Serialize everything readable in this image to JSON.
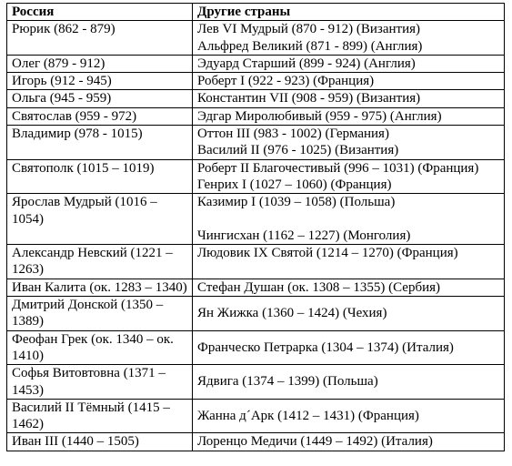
{
  "table": {
    "header": [
      "Россия",
      "Другие страны"
    ],
    "rows": [
      {
        "left": "Рюрик (862 - 879)",
        "right": [
          "Лев VI Мудрый (870 - 912) (Византия)",
          "Альфред Великий (871 - 899) (Англия)"
        ]
      },
      {
        "left": "Олег (879 - 912)",
        "right": [
          "Эдуард Старший (899 - 924) (Англия)"
        ]
      },
      {
        "left": "Игорь (912 - 945)",
        "right": [
          "Роберт I (922 - 923) (Франция)"
        ]
      },
      {
        "left": "Ольга (945 - 959)",
        "right": [
          "Константин VII (908 - 959) (Византия)"
        ]
      },
      {
        "left": "Святослав (959 - 972)",
        "right": [
          "Эдгар Миролюбивый (959 - 975) (Англия)"
        ]
      },
      {
        "left": "Владимир (978 - 1015)",
        "right": [
          "Оттон III (983 - 1002) (Германия)",
          "Василий II (976 - 1025) (Византия)"
        ]
      },
      {
        "left": "Святополк (1015 – 1019)",
        "right": [
          "Роберт II Благочестивый (996 – 1031) (Франция)",
          "Генрих I (1027 – 1060) (Франция)"
        ]
      },
      {
        "left": "Ярослав Мудрый (1016 – 1054)",
        "right": [
          "Казимир I (1039 – 1058) (Польша)",
          "Чингисхан (1162 – 1227) (Монголия)"
        ]
      },
      {
        "left": "Александр Невский (1221 – 1263)",
        "right": [
          "Людовик IX Святой (1214 – 1270) (Франция)"
        ]
      },
      {
        "left": "Иван Калита (ок. 1283 – 1340)",
        "right": [
          "Стефан Душан (ок. 1308 – 1355) (Сербия)"
        ]
      },
      {
        "left": "Дмитрий Донской (1350 – 1389)",
        "right": [
          "Ян Жижка (1360 – 1424) (Чехия)"
        ]
      },
      {
        "left": "Феофан Грек (ок. 1340 – ок. 1410)",
        "right": [
          "Франческо Петрарка (1304 – 1374) (Италия)"
        ]
      },
      {
        "left": "Софья Витовтовна (1371 – 1453)",
        "right": [
          "Ядвига (1374 – 1399) (Польша)"
        ]
      },
      {
        "left": "Василий II Тёмный (1415 – 1462)",
        "right": [
          "Жанна д´Арк (1412 – 1431) (Франция)"
        ]
      },
      {
        "left": "Иван III (1440 – 1505)",
        "right": [
          "Лоренцо Медичи (1449 – 1492) (Италия)"
        ]
      }
    ]
  }
}
